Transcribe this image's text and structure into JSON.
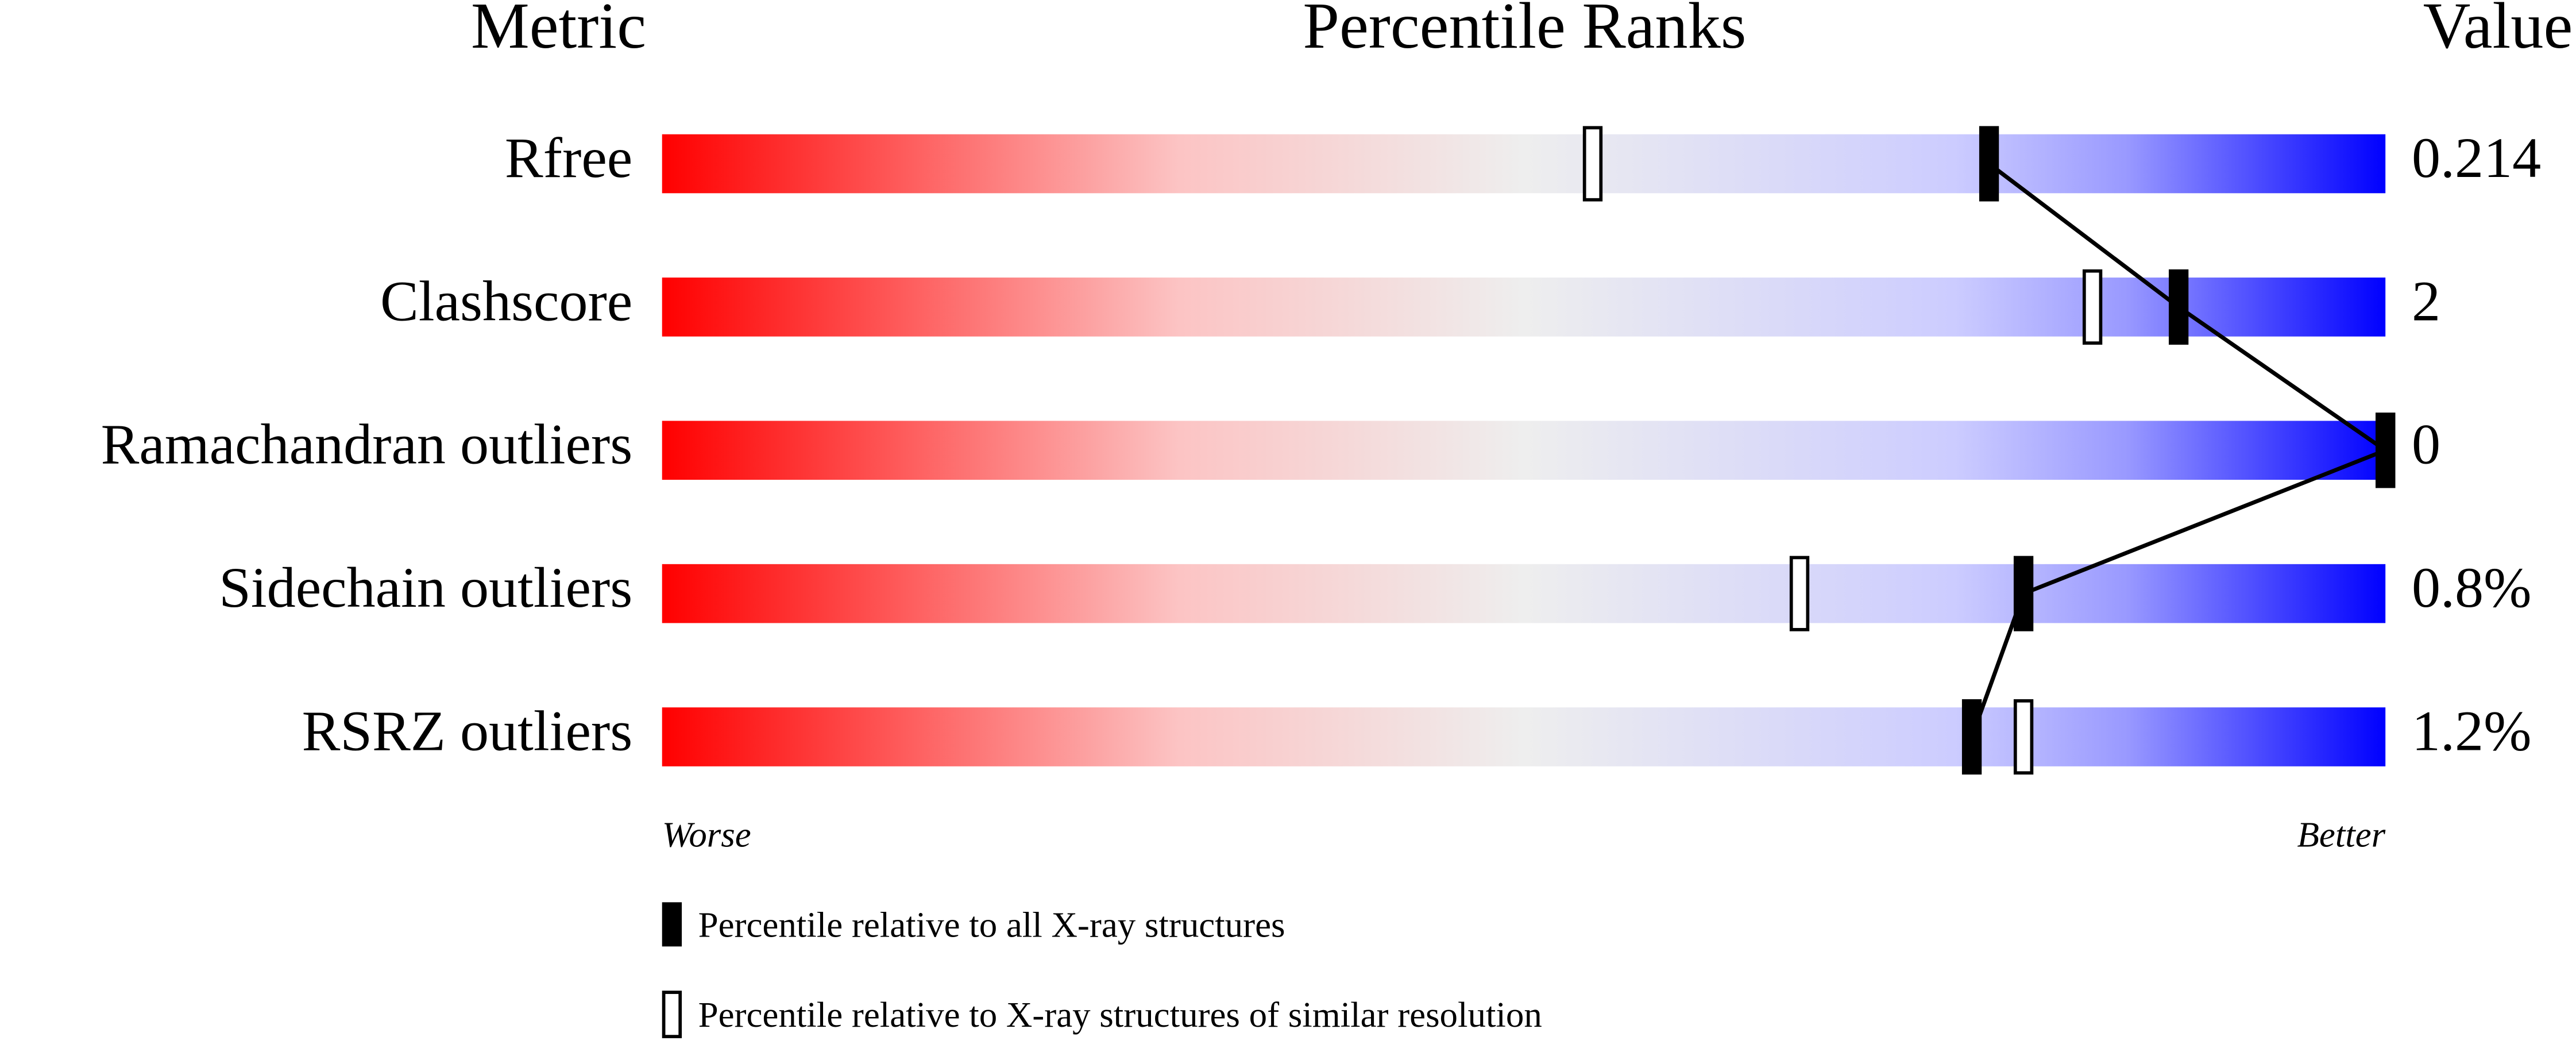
{
  "chart_data": {
    "type": "percentile",
    "headers": {
      "metric": "Metric",
      "ranks": "Percentile Ranks",
      "value": "Value"
    },
    "xlim": [
      0,
      100
    ],
    "categories": [
      "Rfree",
      "Clashscore",
      "Ramachandran outliers",
      "Sidechain outliers",
      "RSRZ outliers"
    ],
    "value_texts": [
      "0.214",
      "2",
      "0",
      "0.8%",
      "1.2%"
    ],
    "series": [
      {
        "name": "Percentile relative to all X-ray structures",
        "color": "#000000",
        "filled": true,
        "values": [
          77,
          88,
          100,
          79,
          76
        ]
      },
      {
        "name": "Percentile relative to X-ray structures of similar resolution",
        "color": "#000000",
        "filled": false,
        "values": [
          54,
          83,
          100,
          66,
          79
        ]
      }
    ],
    "scale_labels": {
      "low": "Worse",
      "high": "Better"
    }
  }
}
